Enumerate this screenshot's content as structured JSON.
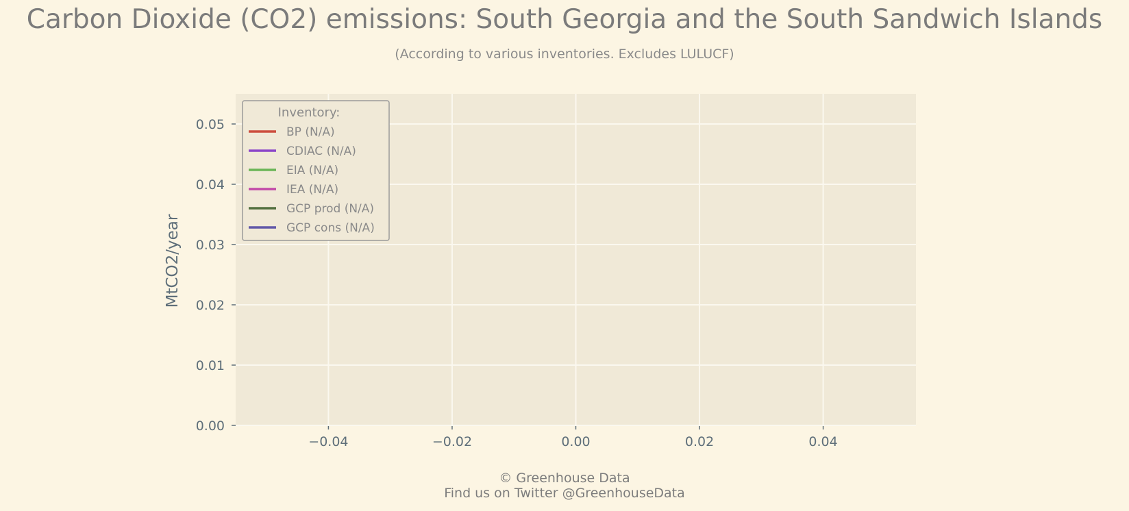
{
  "chart_data": {
    "type": "line",
    "title": "Carbon Dioxide (CO2) emissions: South Georgia and the South Sandwich Islands",
    "subtitle": "(According to various inventories. Excludes LULUCF)",
    "xlabel": "",
    "ylabel": "MtCO2/year",
    "xlim": [
      -0.055,
      0.055
    ],
    "ylim": [
      0,
      0.055
    ],
    "xticks": [
      -0.04,
      -0.02,
      0.0,
      0.02,
      0.04
    ],
    "xtick_labels": [
      "−0.04",
      "−0.02",
      "0.00",
      "0.02",
      "0.04"
    ],
    "yticks": [
      0.0,
      0.01,
      0.02,
      0.03,
      0.04,
      0.05
    ],
    "ytick_labels": [
      "0.00",
      "0.01",
      "0.02",
      "0.03",
      "0.04",
      "0.05"
    ],
    "grid": true,
    "legend_title": "Inventory:",
    "legend_position": "top-left",
    "series": [
      {
        "name": "BP (N/A)",
        "color": "#cc4e3f",
        "values": []
      },
      {
        "name": "CDIAC (N/A)",
        "color": "#8b45c9",
        "values": []
      },
      {
        "name": "EIA (N/A)",
        "color": "#6ab556",
        "values": []
      },
      {
        "name": "IEA (N/A)",
        "color": "#c249a8",
        "values": []
      },
      {
        "name": "GCP prod (N/A)",
        "color": "#52703f",
        "values": []
      },
      {
        "name": "GCP cons (N/A)",
        "color": "#6158a8",
        "values": []
      }
    ]
  },
  "footer": {
    "line1": "© Greenhouse Data",
    "line2": "Find us on Twitter @GreenhouseData"
  },
  "colors": {
    "background": "#fcf5e3",
    "plot_background": "#f0e9d7",
    "grid": "#fbf8ef",
    "text": "#7b7b7b",
    "axis_text": "#5f6f7a"
  }
}
